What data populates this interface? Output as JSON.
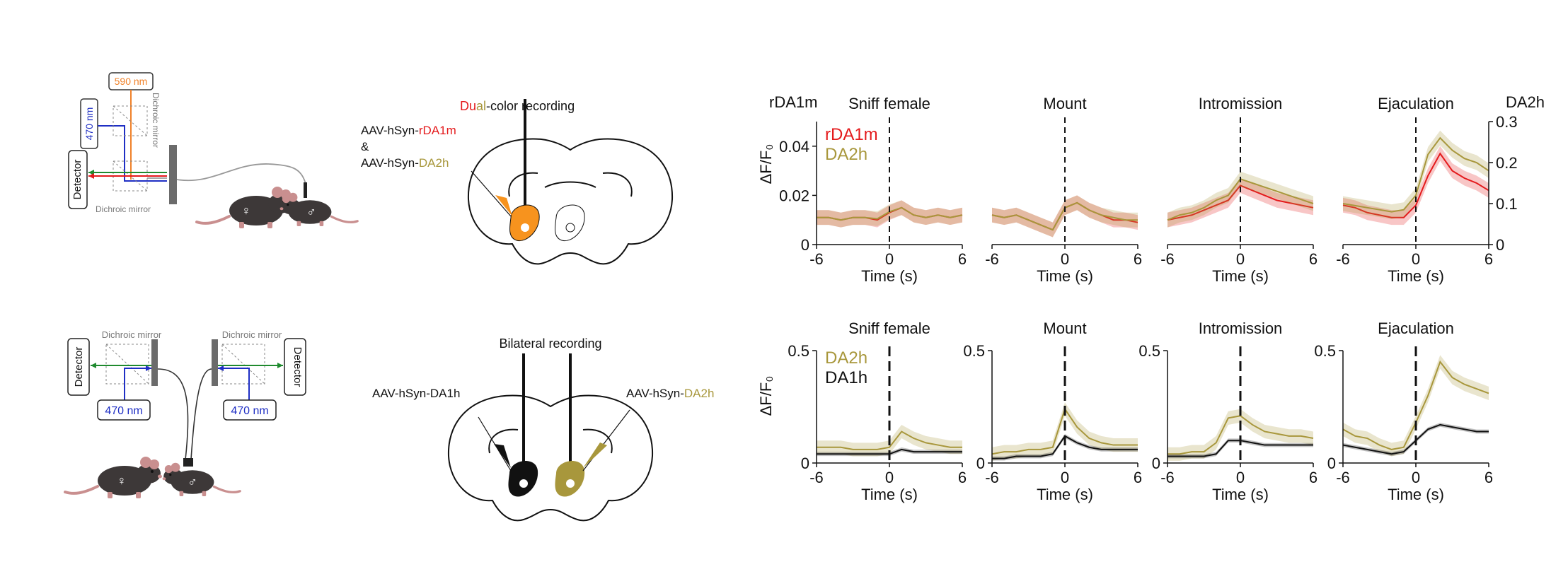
{
  "colors": {
    "red": "#e41a1c",
    "olive": "#a8973c",
    "black": "#111111",
    "orange": "#f7931e",
    "blue": "#1f2fc4",
    "green": "#1f8a2e",
    "laser590": "#f0822a",
    "grey": "#7a7a7a",
    "mouse": "#3d3838"
  },
  "schematic_top": {
    "laser_590": "590 nm",
    "laser_470": "470 nm",
    "dichroic_side": "Dichroic mirror",
    "dichroic_bottom": "Dichroic mirror",
    "detector": "Detector",
    "female_symbol": "♀",
    "male_symbol": "♂"
  },
  "schematic_bottom": {
    "detector_left": "Detector",
    "detector_right": "Detector",
    "dichroic_left": "Dichroic mirror",
    "dichroic_right": "Dichroic mirror",
    "laser_left": "470 nm",
    "laser_right": "470 nm",
    "female_symbol": "♀",
    "male_symbol": "♂"
  },
  "brain_top": {
    "title_red": "Du",
    "title_olive": "al",
    "title_rest": "-color recording",
    "virus1_prefix": "AAV-hSyn-",
    "virus1_name": "rDA1m",
    "amp": "&",
    "virus2_prefix": "AAV-hSyn-",
    "virus2_name": "DA2h"
  },
  "brain_bottom": {
    "title": "Bilateral recording",
    "left_virus": "AAV-hSyn-DA1h",
    "right_virus_prefix": "AAV-hSyn-",
    "right_virus_name": "DA2h"
  },
  "chart_data": [
    {
      "type": "line",
      "row": "top",
      "behaviors": [
        "Sniff female",
        "Mount",
        "Intromission",
        "Ejaculation"
      ],
      "left_axis_title": "rDA1m",
      "right_axis_title": "DA2h",
      "ylabel": "ΔF/F₀",
      "xlabel": "Time (s)",
      "xlim": [
        -6,
        6
      ],
      "xticks": [
        "-6",
        "0",
        "6"
      ],
      "ylim_left": [
        0,
        0.05
      ],
      "yticks_left": [
        "0",
        "0.02",
        "0.04"
      ],
      "ylim_right": [
        0,
        0.3
      ],
      "yticks_right": [
        "0",
        "0.1",
        "0.2",
        "0.3"
      ],
      "event_line_x": 0,
      "legend": "top-left",
      "x": [
        -6,
        -5,
        -4,
        -3,
        -2,
        -1,
        0,
        1,
        2,
        3,
        4,
        5,
        6
      ],
      "series": [
        {
          "name": "rDA1m",
          "axis": "left",
          "color": "red",
          "panels": [
            [
              0.011,
              0.011,
              0.01,
              0.011,
              0.011,
              0.01,
              0.013,
              0.015,
              0.012,
              0.011,
              0.012,
              0.011,
              0.012
            ],
            [
              0.012,
              0.011,
              0.012,
              0.01,
              0.008,
              0.006,
              0.015,
              0.017,
              0.014,
              0.012,
              0.01,
              0.01,
              0.009
            ],
            [
              0.01,
              0.011,
              0.012,
              0.014,
              0.016,
              0.018,
              0.024,
              0.022,
              0.02,
              0.018,
              0.017,
              0.016,
              0.015
            ],
            [
              0.016,
              0.015,
              0.013,
              0.012,
              0.011,
              0.011,
              0.016,
              0.028,
              0.037,
              0.03,
              0.027,
              0.025,
              0.022
            ]
          ]
        },
        {
          "name": "DA2h",
          "axis": "right",
          "color": "olive",
          "panels": [
            [
              0.066,
              0.066,
              0.06,
              0.066,
              0.066,
              0.063,
              0.08,
              0.09,
              0.072,
              0.066,
              0.072,
              0.066,
              0.072
            ],
            [
              0.072,
              0.066,
              0.072,
              0.06,
              0.048,
              0.036,
              0.09,
              0.102,
              0.084,
              0.072,
              0.066,
              0.06,
              0.06
            ],
            [
              0.06,
              0.072,
              0.078,
              0.09,
              0.108,
              0.12,
              0.16,
              0.15,
              0.14,
              0.13,
              0.12,
              0.11,
              0.1
            ],
            [
              0.1,
              0.095,
              0.09,
              0.085,
              0.08,
              0.085,
              0.12,
              0.22,
              0.26,
              0.23,
              0.21,
              0.2,
              0.18
            ]
          ]
        }
      ]
    },
    {
      "type": "line",
      "row": "bottom",
      "behaviors": [
        "Sniff female",
        "Mount",
        "Intromission",
        "Ejaculation"
      ],
      "ylabel": "ΔF/F₀",
      "xlabel": "Time (s)",
      "xlim": [
        -6,
        6
      ],
      "xticks": [
        "-6",
        "0",
        "6"
      ],
      "ylim": [
        0,
        0.5
      ],
      "yticks": [
        "0",
        "0.5"
      ],
      "event_line_x": 0,
      "legend": "top-left",
      "x": [
        -6,
        -5,
        -4,
        -3,
        -2,
        -1,
        0,
        1,
        2,
        3,
        4,
        5,
        6
      ],
      "series": [
        {
          "name": "DA2h",
          "color": "olive",
          "panels": [
            [
              0.07,
              0.07,
              0.07,
              0.06,
              0.06,
              0.06,
              0.07,
              0.14,
              0.11,
              0.09,
              0.08,
              0.07,
              0.07
            ],
            [
              0.04,
              0.05,
              0.05,
              0.06,
              0.06,
              0.07,
              0.24,
              0.16,
              0.11,
              0.09,
              0.08,
              0.08,
              0.08
            ],
            [
              0.04,
              0.04,
              0.05,
              0.05,
              0.09,
              0.2,
              0.21,
              0.17,
              0.14,
              0.13,
              0.12,
              0.12,
              0.11
            ],
            [
              0.15,
              0.12,
              0.11,
              0.08,
              0.06,
              0.07,
              0.18,
              0.3,
              0.45,
              0.38,
              0.35,
              0.33,
              0.31
            ]
          ]
        },
        {
          "name": "DA1h",
          "color": "black",
          "panels": [
            [
              0.04,
              0.04,
              0.04,
              0.04,
              0.04,
              0.04,
              0.04,
              0.06,
              0.05,
              0.05,
              0.05,
              0.05,
              0.05
            ],
            [
              0.02,
              0.02,
              0.03,
              0.03,
              0.03,
              0.04,
              0.12,
              0.09,
              0.07,
              0.06,
              0.06,
              0.06,
              0.06
            ],
            [
              0.03,
              0.03,
              0.03,
              0.03,
              0.04,
              0.1,
              0.1,
              0.09,
              0.08,
              0.08,
              0.08,
              0.08,
              0.08
            ],
            [
              0.08,
              0.07,
              0.06,
              0.05,
              0.04,
              0.05,
              0.1,
              0.15,
              0.17,
              0.16,
              0.15,
              0.14,
              0.14
            ]
          ]
        }
      ]
    }
  ]
}
